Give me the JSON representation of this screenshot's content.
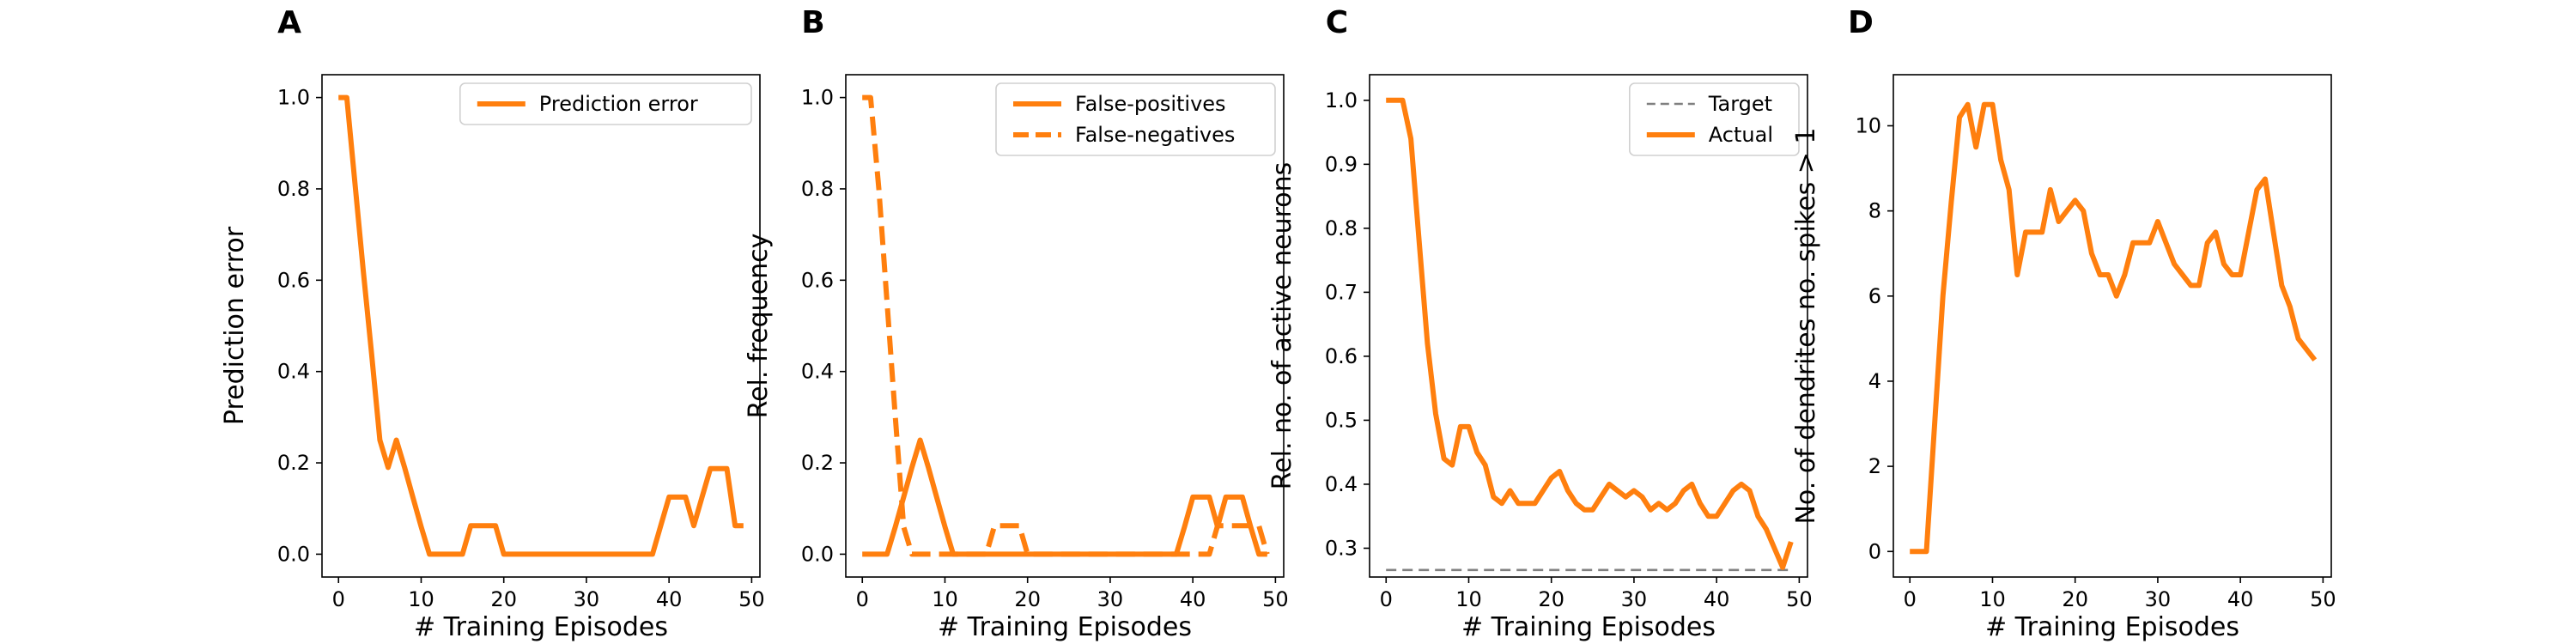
{
  "chart_data": [
    {
      "type": "line",
      "panel_letter": "A",
      "xlabel": "# Training Episodes",
      "ylabel": "Prediction error",
      "xlim": [
        -2,
        51
      ],
      "ylim": [
        -0.05,
        1.05
      ],
      "xticks": [
        0,
        10,
        20,
        30,
        40,
        50
      ],
      "yticks": [
        0.0,
        0.2,
        0.4,
        0.6,
        0.8,
        1.0
      ],
      "ytick_decimals": 1,
      "legend": "top-right",
      "series": [
        {
          "name": "Prediction error",
          "style": "solid",
          "color": "#ff7f0e",
          "x": [
            0,
            1,
            2,
            3,
            4,
            5,
            6,
            7,
            8,
            9,
            10,
            11,
            12,
            13,
            14,
            15,
            16,
            17,
            18,
            19,
            20,
            21,
            22,
            23,
            24,
            25,
            26,
            27,
            28,
            29,
            30,
            31,
            32,
            33,
            34,
            35,
            36,
            37,
            38,
            39,
            40,
            41,
            42,
            43,
            44,
            45,
            46,
            47,
            48,
            49
          ],
          "y": [
            1.0,
            1.0,
            0.81,
            0.62,
            0.44,
            0.25,
            0.19,
            0.25,
            0.19,
            0.125,
            0.06,
            0.0,
            0.0,
            0.0,
            0.0,
            0.0,
            0.0625,
            0.0625,
            0.0625,
            0.0625,
            0.0,
            0.0,
            0.0,
            0.0,
            0.0,
            0.0,
            0.0,
            0.0,
            0.0,
            0.0,
            0.0,
            0.0,
            0.0,
            0.0,
            0.0,
            0.0,
            0.0,
            0.0,
            0.0,
            0.0625,
            0.125,
            0.125,
            0.125,
            0.0625,
            0.125,
            0.1875,
            0.1875,
            0.1875,
            0.0625,
            0.0625
          ]
        }
      ]
    },
    {
      "type": "line",
      "panel_letter": "B",
      "xlabel": "# Training Episodes",
      "ylabel": "Rel. frequency",
      "xlim": [
        -2,
        51
      ],
      "ylim": [
        -0.05,
        1.05
      ],
      "xticks": [
        0,
        10,
        20,
        30,
        40,
        50
      ],
      "yticks": [
        0.0,
        0.2,
        0.4,
        0.6,
        0.8,
        1.0
      ],
      "ytick_decimals": 1,
      "legend": "top-right",
      "series": [
        {
          "name": "False-positives",
          "style": "solid",
          "color": "#ff7f0e",
          "x": [
            0,
            1,
            2,
            3,
            4,
            5,
            6,
            7,
            8,
            9,
            10,
            11,
            12,
            13,
            14,
            15,
            16,
            17,
            18,
            19,
            20,
            21,
            22,
            23,
            24,
            25,
            26,
            27,
            28,
            29,
            30,
            31,
            32,
            33,
            34,
            35,
            36,
            37,
            38,
            39,
            40,
            41,
            42,
            43,
            44,
            45,
            46,
            47,
            48,
            49
          ],
          "y": [
            0.0,
            0.0,
            0.0,
            0.0,
            0.06,
            0.125,
            0.19,
            0.25,
            0.19,
            0.125,
            0.06,
            0.0,
            0.0,
            0.0,
            0.0,
            0.0,
            0.0,
            0.0,
            0.0,
            0.0,
            0.0,
            0.0,
            0.0,
            0.0,
            0.0,
            0.0,
            0.0,
            0.0,
            0.0,
            0.0,
            0.0,
            0.0,
            0.0,
            0.0,
            0.0,
            0.0,
            0.0,
            0.0,
            0.0,
            0.06,
            0.125,
            0.125,
            0.125,
            0.06,
            0.125,
            0.125,
            0.125,
            0.06,
            0.0,
            0.0
          ]
        },
        {
          "name": "False-negatives",
          "style": "dashed",
          "color": "#ff7f0e",
          "x": [
            0,
            1,
            2,
            3,
            4,
            5,
            6,
            7,
            8,
            9,
            10,
            11,
            12,
            13,
            14,
            15,
            16,
            17,
            18,
            19,
            20,
            21,
            22,
            23,
            24,
            25,
            26,
            27,
            28,
            29,
            30,
            31,
            32,
            33,
            34,
            35,
            36,
            37,
            38,
            39,
            40,
            41,
            42,
            43,
            44,
            45,
            46,
            47,
            48,
            49
          ],
          "y": [
            1.0,
            1.0,
            0.8,
            0.55,
            0.3,
            0.06,
            0.0,
            0.0,
            0.0,
            0.0,
            0.0,
            0.0,
            0.0,
            0.0,
            0.0,
            0.0,
            0.0625,
            0.0625,
            0.0625,
            0.0625,
            0.0,
            0.0,
            0.0,
            0.0,
            0.0,
            0.0,
            0.0,
            0.0,
            0.0,
            0.0,
            0.0,
            0.0,
            0.0,
            0.0,
            0.0,
            0.0,
            0.0,
            0.0,
            0.0,
            0.0,
            0.0,
            0.0,
            0.0,
            0.0625,
            0.0625,
            0.0625,
            0.0625,
            0.0625,
            0.0625,
            0.0
          ]
        }
      ]
    },
    {
      "type": "line",
      "panel_letter": "C",
      "xlabel": "# Training Episodes",
      "ylabel": "Rel. no. of active neurons",
      "xlim": [
        -2,
        51
      ],
      "ylim": [
        0.255,
        1.04
      ],
      "xticks": [
        0,
        10,
        20,
        30,
        40,
        50
      ],
      "yticks": [
        0.3,
        0.4,
        0.5,
        0.6,
        0.7,
        0.8,
        0.9,
        1.0
      ],
      "ytick_decimals": 1,
      "legend": "top-right",
      "series": [
        {
          "name": "Target",
          "style": "dashed-thin",
          "color": "#808080",
          "x": [
            0,
            49
          ],
          "y": [
            0.266,
            0.266
          ]
        },
        {
          "name": "Actual",
          "style": "solid",
          "color": "#ff7f0e",
          "x": [
            0,
            1,
            2,
            3,
            4,
            5,
            6,
            7,
            8,
            9,
            10,
            11,
            12,
            13,
            14,
            15,
            16,
            17,
            18,
            19,
            20,
            21,
            22,
            23,
            24,
            25,
            26,
            27,
            28,
            29,
            30,
            31,
            32,
            33,
            34,
            35,
            36,
            37,
            38,
            39,
            40,
            41,
            42,
            43,
            44,
            45,
            46,
            47,
            48,
            49
          ],
          "y": [
            1.0,
            1.0,
            1.0,
            0.94,
            0.78,
            0.62,
            0.51,
            0.44,
            0.43,
            0.49,
            0.49,
            0.45,
            0.43,
            0.38,
            0.37,
            0.39,
            0.37,
            0.37,
            0.37,
            0.39,
            0.41,
            0.42,
            0.39,
            0.37,
            0.36,
            0.36,
            0.38,
            0.4,
            0.39,
            0.38,
            0.39,
            0.38,
            0.36,
            0.37,
            0.36,
            0.37,
            0.39,
            0.4,
            0.37,
            0.35,
            0.35,
            0.37,
            0.39,
            0.4,
            0.39,
            0.35,
            0.33,
            0.3,
            0.27,
            0.31
          ]
        }
      ]
    },
    {
      "type": "line",
      "panel_letter": "D",
      "xlabel": "# Training Episodes",
      "ylabel": "No. of dendrites no. spikes > 1",
      "xlim": [
        -2,
        51
      ],
      "ylim": [
        -0.6,
        11.2
      ],
      "xticks": [
        0,
        10,
        20,
        30,
        40,
        50
      ],
      "yticks": [
        0,
        2,
        4,
        6,
        8,
        10
      ],
      "ytick_decimals": 0,
      "legend": "none",
      "series": [
        {
          "name": "",
          "style": "solid",
          "color": "#ff7f0e",
          "x": [
            0,
            1,
            2,
            3,
            4,
            5,
            6,
            7,
            8,
            9,
            10,
            11,
            12,
            13,
            14,
            15,
            16,
            17,
            18,
            19,
            20,
            21,
            22,
            23,
            24,
            25,
            26,
            27,
            28,
            29,
            30,
            31,
            32,
            33,
            34,
            35,
            36,
            37,
            38,
            39,
            40,
            41,
            42,
            43,
            44,
            45,
            46,
            47,
            48,
            49
          ],
          "y": [
            0,
            0,
            0,
            3,
            6,
            8.2,
            10.2,
            10.5,
            9.5,
            10.5,
            10.5,
            9.2,
            8.5,
            6.5,
            7.5,
            7.5,
            7.5,
            8.5,
            7.75,
            8.0,
            8.25,
            8.0,
            7.0,
            6.5,
            6.5,
            6.0,
            6.5,
            7.25,
            7.25,
            7.25,
            7.75,
            7.25,
            6.75,
            6.5,
            6.25,
            6.25,
            7.25,
            7.5,
            6.75,
            6.5,
            6.5,
            7.5,
            8.5,
            8.75,
            7.5,
            6.25,
            5.75,
            5.0,
            4.75,
            4.5
          ]
        }
      ]
    }
  ]
}
